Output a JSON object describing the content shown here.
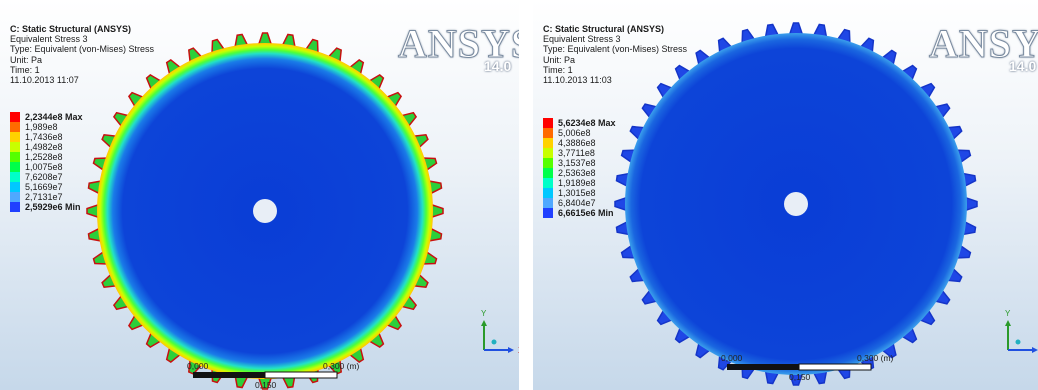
{
  "panels": [
    {
      "id": "left",
      "header": {
        "title": "C: Static Structural (ANSYS)",
        "lines": [
          "Equivalent Stress 3",
          "Type: Equivalent (von-Mises) Stress",
          "Unit: Pa",
          "Time: 1",
          "11.10.2013 11:07"
        ]
      },
      "logo": "ANSYS",
      "version": "14.0",
      "legend": {
        "max_label": "2,2344e8 Max",
        "labels": [
          "1,989e8",
          "1,7436e8",
          "1,4982e8",
          "1,2528e8",
          "1,0075e8",
          "7,6208e7",
          "5,1669e7",
          "2,7131e7"
        ],
        "min_label": "2,5929e6 Min",
        "colors": [
          "#ff0000",
          "#ff6a00",
          "#ffd200",
          "#c8ff00",
          "#55ff00",
          "#00ff4a",
          "#00ffc8",
          "#00c8ff",
          "#2040ff"
        ]
      },
      "scale_bar": {
        "start": "0,000",
        "end": "0,300 (m)",
        "mid": "0,150"
      },
      "axes": {
        "x": "X",
        "y": "Y"
      },
      "rim_style": "hot"
    },
    {
      "id": "right",
      "header": {
        "title": "C: Static Structural (ANSYS)",
        "lines": [
          "Equivalent Stress 3",
          "Type: Equivalent (von-Mises) Stress",
          "Unit: Pa",
          "Time: 1",
          "11.10.2013 11:03"
        ]
      },
      "logo": "ANSYS",
      "version": "14.0",
      "legend": {
        "max_label": "5,6234e8 Max",
        "labels": [
          "5,006e8",
          "4,3886e8",
          "3,7711e8",
          "3,1537e8",
          "2,5363e8",
          "1,9189e8",
          "1,3015e8",
          "6,8404e7"
        ],
        "min_label": "6,6615e6 Min",
        "colors": [
          "#ff0000",
          "#ff6a00",
          "#ffd200",
          "#c8ff00",
          "#55ff00",
          "#00ff4a",
          "#00ffc8",
          "#00c8ff",
          "#2040ff"
        ]
      },
      "scale_bar": {
        "start": "0,000",
        "end": "0,300 (m)",
        "mid": "0,150"
      },
      "axes": {
        "x": "",
        "y": "Y"
      },
      "rim_style": "cool"
    }
  ]
}
